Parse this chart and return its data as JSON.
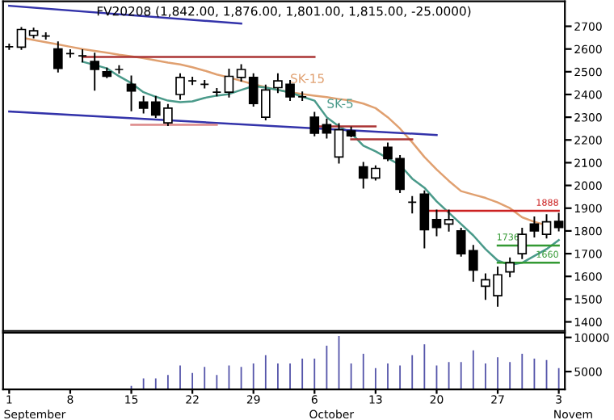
{
  "chart_data": [
    {
      "type": "candlestick",
      "title": "FV20208 (1,842.00, 1,876.00, 1,801.00, 1,815.00, -25.0000)",
      "categories": [
        "1",
        null,
        null,
        null,
        null,
        "8",
        null,
        null,
        null,
        null,
        "15",
        null,
        null,
        null,
        null,
        "22",
        null,
        null,
        null,
        null,
        "29",
        null,
        null,
        null,
        null,
        "6",
        null,
        null,
        null,
        null,
        "13",
        null,
        null,
        null,
        null,
        "20",
        null,
        null,
        null,
        null,
        "27",
        null,
        null,
        null,
        null,
        "3"
      ],
      "ohlc": [
        [
          2610,
          2620,
          2600,
          2610
        ],
        [
          2608,
          2693,
          2600,
          2686
        ],
        [
          2660,
          2690,
          2650,
          2680
        ],
        [
          2657,
          2670,
          2645,
          2657
        ],
        [
          2600,
          2630,
          2500,
          2515
        ],
        [
          2580,
          2595,
          2565,
          2580
        ],
        [
          2570,
          2595,
          2545,
          2570
        ],
        [
          2545,
          2580,
          2420,
          2510
        ],
        [
          2500,
          2515,
          2475,
          2480
        ],
        [
          2510,
          2525,
          2495,
          2510
        ],
        [
          2445,
          2480,
          2330,
          2415
        ],
        [
          2367,
          2390,
          2320,
          2340
        ],
        [
          2367,
          2390,
          2300,
          2310
        ],
        [
          2275,
          2355,
          2265,
          2340
        ],
        [
          2400,
          2490,
          2380,
          2475
        ],
        [
          2460,
          2475,
          2445,
          2460
        ],
        [
          2445,
          2460,
          2430,
          2445
        ],
        [
          2410,
          2425,
          2395,
          2410
        ],
        [
          2410,
          2510,
          2390,
          2480
        ],
        [
          2475,
          2530,
          2460,
          2510
        ],
        [
          2475,
          2490,
          2350,
          2360
        ],
        [
          2300,
          2440,
          2290,
          2420
        ],
        [
          2430,
          2490,
          2410,
          2460
        ],
        [
          2445,
          2460,
          2375,
          2390
        ],
        [
          2390,
          2410,
          2375,
          2390
        ],
        [
          2300,
          2320,
          2220,
          2230
        ],
        [
          2267,
          2290,
          2210,
          2231
        ],
        [
          2125,
          2270,
          2100,
          2245
        ],
        [
          2240,
          2255,
          2215,
          2218
        ],
        [
          2082,
          2100,
          1990,
          2033
        ],
        [
          2033,
          2085,
          2025,
          2075
        ],
        [
          2168,
          2185,
          2110,
          2118
        ],
        [
          2118,
          2130,
          1970,
          1983
        ],
        [
          1926,
          1950,
          1880,
          1926
        ],
        [
          1962,
          1975,
          1727,
          1805
        ],
        [
          1850,
          1890,
          1780,
          1815
        ],
        [
          1830,
          1890,
          1800,
          1850
        ],
        [
          1800,
          1810,
          1690,
          1700
        ],
        [
          1713,
          1735,
          1580,
          1628
        ],
        [
          1557,
          1610,
          1500,
          1585
        ],
        [
          1515,
          1640,
          1470,
          1607
        ],
        [
          1620,
          1680,
          1600,
          1660
        ],
        [
          1700,
          1810,
          1680,
          1785
        ],
        [
          1830,
          1860,
          1775,
          1800
        ],
        [
          1785,
          1870,
          1770,
          1840
        ],
        [
          1842,
          1876,
          1801,
          1815
        ]
      ],
      "series": [
        {
          "type": "line",
          "name": "SK-15",
          "color": "#e0a070",
          "values": [
            null,
            2650,
            2640,
            2630,
            2620,
            2610,
            2600,
            2592,
            2584,
            2575,
            2568,
            2560,
            2550,
            2540,
            2532,
            2520,
            2505,
            2488,
            2475,
            2460,
            2445,
            2432,
            2420,
            2410,
            2402,
            2395,
            2388,
            2380,
            2373,
            2360,
            2340,
            2300,
            2250,
            2190,
            2125,
            2070,
            2020,
            1975,
            1960,
            1945,
            1925,
            1900,
            1860,
            1840,
            1825,
            null
          ]
        },
        {
          "type": "line",
          "name": "SK-5",
          "color": "#4a9a8a",
          "values": [
            null,
            null,
            null,
            null,
            null,
            null,
            2544,
            2530,
            2515,
            2480,
            2450,
            2410,
            2390,
            2373,
            2366,
            2370,
            2385,
            2395,
            2402,
            2420,
            2437,
            2430,
            2420,
            2409,
            2390,
            2373,
            2300,
            2260,
            2230,
            2175,
            2150,
            2120,
            2090,
            2030,
            1990,
            1930,
            1880,
            1830,
            1780,
            1720,
            1670,
            1650,
            1660,
            1690,
            1720,
            1760
          ]
        },
        {
          "type": "line",
          "color": "#3333aa",
          "values": [
            2790,
            null,
            null,
            null,
            null,
            null,
            null,
            null,
            null,
            null,
            null,
            null,
            null,
            null,
            null,
            null,
            null,
            null,
            null,
            2712,
            null,
            null,
            null,
            null,
            null,
            null,
            null,
            null,
            null,
            null,
            null,
            null,
            null,
            null,
            null,
            null,
            null,
            null,
            null,
            null,
            null,
            null,
            null,
            null,
            null,
            null
          ]
        },
        {
          "type": "line",
          "color": "#3333aa",
          "values": [
            2325,
            null,
            null,
            null,
            null,
            null,
            null,
            null,
            null,
            null,
            null,
            null,
            null,
            null,
            null,
            null,
            null,
            null,
            null,
            null,
            null,
            null,
            null,
            null,
            null,
            null,
            null,
            null,
            null,
            null,
            null,
            null,
            null,
            null,
            null,
            2222,
            null,
            null,
            null,
            null,
            null,
            null,
            null,
            null,
            null,
            null
          ]
        },
        {
          "type": "line",
          "color": "#aa3333",
          "values": [
            null,
            null,
            null,
            null,
            null,
            null,
            2565,
            null,
            null,
            null,
            null,
            null,
            null,
            null,
            null,
            null,
            null,
            null,
            null,
            null,
            null,
            null,
            null,
            null,
            null,
            2565,
            null,
            null,
            null,
            null,
            null,
            null,
            null,
            null,
            null,
            null,
            null,
            null,
            null,
            null,
            null,
            null,
            null,
            null,
            null,
            null
          ]
        },
        {
          "type": "line",
          "color": "#dd8888",
          "values": [
            null,
            null,
            null,
            null,
            null,
            null,
            null,
            null,
            null,
            null,
            2267,
            null,
            null,
            null,
            null,
            null,
            null,
            2267,
            null,
            null,
            null,
            null,
            null,
            null,
            null,
            null,
            null,
            null,
            null,
            null,
            null,
            null,
            null,
            null,
            null,
            null,
            null,
            null,
            null,
            null,
            null,
            null,
            null,
            null,
            null,
            null
          ]
        },
        {
          "type": "line",
          "color": "#aa3333",
          "values": [
            null,
            null,
            null,
            null,
            null,
            null,
            null,
            null,
            null,
            null,
            null,
            null,
            null,
            null,
            null,
            null,
            null,
            null,
            null,
            null,
            null,
            null,
            null,
            null,
            null,
            2260,
            null,
            null,
            null,
            null,
            2260,
            null,
            null,
            null,
            null,
            null,
            null,
            null,
            null,
            null,
            null,
            null,
            null,
            null,
            null,
            null
          ]
        },
        {
          "type": "line",
          "color": "#aa3333",
          "values": [
            null,
            null,
            null,
            null,
            null,
            null,
            null,
            null,
            null,
            null,
            null,
            null,
            null,
            null,
            null,
            null,
            null,
            null,
            null,
            null,
            null,
            null,
            null,
            null,
            null,
            null,
            null,
            null,
            2203,
            null,
            null,
            null,
            null,
            2203,
            null,
            null,
            null,
            null,
            null,
            null,
            null,
            null,
            null,
            null,
            null,
            null
          ]
        },
        {
          "type": "line",
          "name": "1888",
          "color": "#cc2222",
          "values": [
            null,
            null,
            null,
            null,
            null,
            null,
            null,
            null,
            null,
            null,
            null,
            null,
            null,
            null,
            null,
            null,
            null,
            null,
            null,
            null,
            null,
            null,
            null,
            null,
            null,
            null,
            null,
            null,
            null,
            null,
            null,
            null,
            null,
            null,
            1888,
            null,
            null,
            null,
            null,
            null,
            null,
            null,
            null,
            null,
            null,
            1888
          ]
        },
        {
          "type": "line",
          "name": "1736",
          "color": "#339933",
          "values": [
            null,
            null,
            null,
            null,
            null,
            null,
            null,
            null,
            null,
            null,
            null,
            null,
            null,
            null,
            null,
            null,
            null,
            null,
            null,
            null,
            null,
            null,
            null,
            null,
            null,
            null,
            null,
            null,
            null,
            null,
            null,
            null,
            null,
            null,
            null,
            null,
            null,
            null,
            null,
            null,
            1736,
            null,
            null,
            null,
            null,
            1736
          ]
        },
        {
          "type": "line",
          "name": "1660",
          "color": "#339933",
          "values": [
            null,
            null,
            null,
            null,
            null,
            null,
            null,
            null,
            null,
            null,
            null,
            null,
            null,
            null,
            null,
            null,
            null,
            null,
            null,
            null,
            null,
            null,
            null,
            null,
            null,
            null,
            null,
            null,
            null,
            null,
            null,
            null,
            null,
            null,
            null,
            null,
            null,
            null,
            null,
            null,
            1660,
            null,
            null,
            null,
            null,
            1660
          ]
        }
      ],
      "ylim": [
        1360,
        2810
      ],
      "yticks": [
        1400,
        1500,
        1600,
        1700,
        1800,
        1900,
        2000,
        2100,
        2200,
        2300,
        2400,
        2500,
        2600,
        2700
      ],
      "tick_labels": "y"
    },
    {
      "type": "bar",
      "color": "#5555aa",
      "categories": [
        "1",
        null,
        null,
        null,
        null,
        "8",
        null,
        null,
        null,
        null,
        "15",
        null,
        null,
        null,
        null,
        "22",
        null,
        null,
        null,
        null,
        "29",
        null,
        null,
        null,
        null,
        "6",
        null,
        null,
        null,
        null,
        "13",
        null,
        null,
        null,
        null,
        "20",
        null,
        null,
        null,
        null,
        "27",
        null,
        null,
        null,
        null,
        "3"
      ],
      "values": [
        null,
        null,
        null,
        null,
        null,
        null,
        null,
        null,
        null,
        null,
        2900,
        4000,
        4000,
        4500,
        5900,
        4800,
        5700,
        4500,
        5900,
        5700,
        6200,
        7400,
        6200,
        6200,
        6900,
        6900,
        8800,
        10200,
        6200,
        7600,
        5500,
        6200,
        5900,
        7400,
        9000,
        5900,
        6400,
        6400,
        8100,
        6200,
        7100,
        6400,
        7600,
        6900,
        6700,
        5500
      ],
      "ylim": [
        2400,
        10700
      ],
      "yticks": [
        5000,
        10000
      ],
      "annotations": [
        "September",
        "October",
        "Novem"
      ]
    }
  ]
}
